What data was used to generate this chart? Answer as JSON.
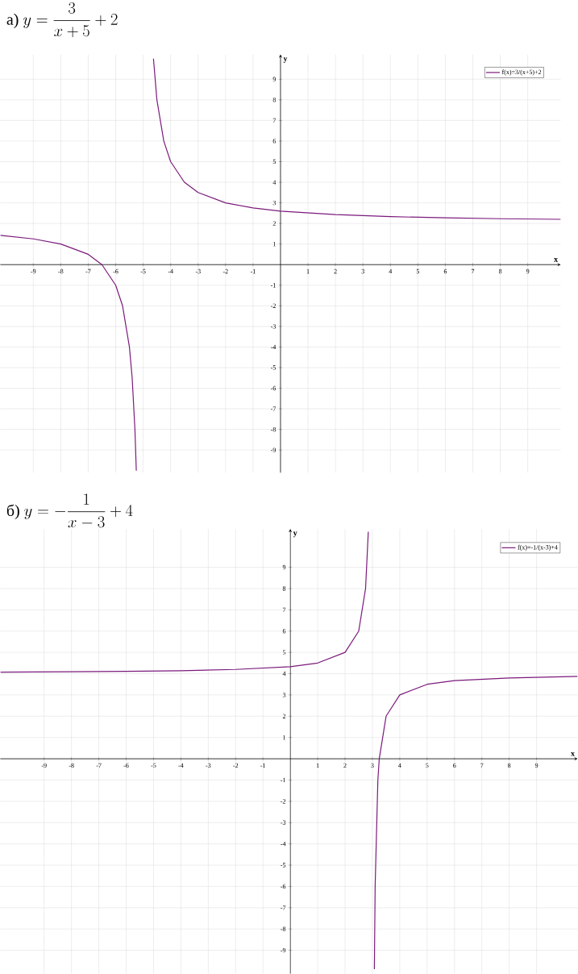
{
  "chart_data": [
    {
      "type": "line",
      "title": "\\text{а) }y=\\dfrac{3}{x+5}+2",
      "xlabel": "x",
      "ylabel": "y",
      "x": [
        -10.2,
        -9,
        -8,
        -7,
        -6.5,
        -6,
        -5.75,
        -5.5,
        -5.4,
        -5.3,
        -5.25,
        -5,
        -4.625,
        -4.5,
        -4.25,
        -4,
        -3.5,
        -3,
        -2,
        -1,
        0,
        2,
        4,
        6,
        8,
        10.2
      ],
      "series": [
        {
          "name": "f(x)=3/(x+5)+2",
          "color": "#7b1a7b",
          "values": [
            1.42,
            1.25,
            1,
            0.5,
            0,
            -1,
            -2,
            -4,
            -5.5,
            -8,
            -10,
            null,
            10,
            8,
            6,
            5,
            4,
            3.5,
            3,
            2.75,
            2.6,
            2.43,
            2.33,
            2.27,
            2.23,
            2.2
          ]
        }
      ],
      "xlim": [
        -10.2,
        10.2
      ],
      "ylim": [
        -10.1,
        10.2
      ],
      "xticks": [
        -9,
        -8,
        -7,
        -6,
        -5,
        -4,
        -3,
        -2,
        -1,
        1,
        2,
        3,
        4,
        5,
        6,
        7,
        8,
        9
      ],
      "yticks": [
        -9,
        -8,
        -7,
        -6,
        -5,
        -4,
        -3,
        -2,
        -1,
        1,
        2,
        3,
        4,
        5,
        6,
        7,
        8,
        9
      ],
      "grid": true,
      "legend": "top right"
    },
    {
      "type": "line",
      "title": "\\text{б) }y=-\\dfrac{1}{x-3}+4",
      "xlabel": "x",
      "ylabel": "y",
      "x": [
        -10.6,
        -8,
        -6,
        -4,
        -2,
        0,
        1,
        2,
        2.5,
        2.75,
        2.85,
        3,
        3.072,
        3.1,
        3.2,
        3.25,
        3.5,
        4,
        5,
        6,
        8,
        10.5
      ],
      "series": [
        {
          "name": "f(x)=-1/(x-3)+4",
          "color": "#7b1a7b",
          "values": [
            4.07,
            4.09,
            4.11,
            4.14,
            4.2,
            4.33,
            4.5,
            5,
            6,
            8,
            10.67,
            null,
            -9.89,
            -6,
            -1,
            0,
            2,
            3,
            3.5,
            3.67,
            3.8,
            3.87
          ]
        }
      ],
      "xlim": [
        -10.6,
        10.5
      ],
      "ylim": [
        -10.1,
        10.8
      ],
      "xticks": [
        -9,
        -8,
        -7,
        -6,
        -5,
        -4,
        -3,
        -2,
        -1,
        1,
        2,
        3,
        4,
        5,
        6,
        7,
        8,
        9
      ],
      "yticks": [
        -9,
        -8,
        -7,
        -6,
        -5,
        -4,
        -3,
        -2,
        -1,
        1,
        2,
        3,
        4,
        5,
        6,
        7,
        8,
        9
      ],
      "grid": true,
      "legend": "top right"
    }
  ]
}
